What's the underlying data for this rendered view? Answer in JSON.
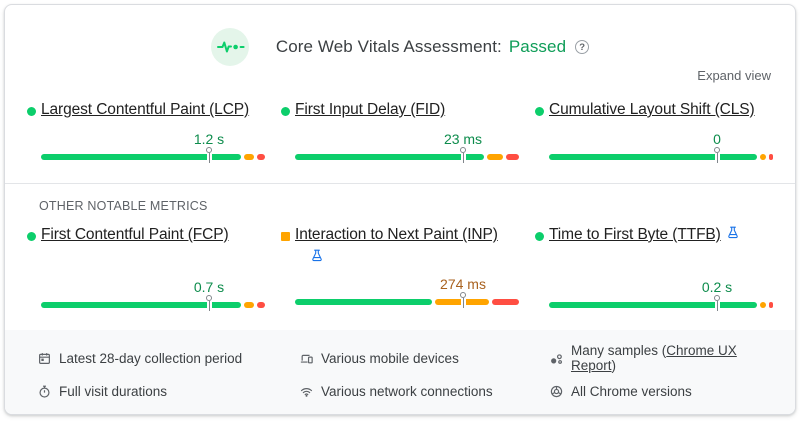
{
  "colors": {
    "green": "#0cce6b",
    "orange": "#ffa400",
    "red": "#ff4e42",
    "value_green": "#0d8c4c",
    "value_amber": "#a9621f",
    "status_green": "#0f9d58"
  },
  "header": {
    "title": "Core Web Vitals Assessment:",
    "status": "Passed",
    "help_glyph": "?"
  },
  "expand_label": "Expand view",
  "other_metrics_label": "OTHER NOTABLE METRICS",
  "metrics": [
    {
      "id": "lcp",
      "title": "Largest Contentful Paint (LCP)",
      "value": "1.2 s",
      "value_color": "value_green",
      "bullet": {
        "shape": "circle",
        "color": "green"
      },
      "marker_pct": 75,
      "segments": [
        {
          "color": "green",
          "pct": 89
        },
        {
          "color": "orange",
          "pct": 4.5
        },
        {
          "color": "red",
          "pct": 3.5
        }
      ]
    },
    {
      "id": "fid",
      "title": "First Input Delay (FID)",
      "value": "23 ms",
      "value_color": "value_green",
      "bullet": {
        "shape": "circle",
        "color": "green"
      },
      "marker_pct": 75,
      "segments": [
        {
          "color": "green",
          "pct": 84
        },
        {
          "color": "orange",
          "pct": 7
        },
        {
          "color": "red",
          "pct": 6
        }
      ]
    },
    {
      "id": "cls",
      "title": "Cumulative Layout Shift (CLS)",
      "value": "0",
      "value_color": "value_green",
      "bullet": {
        "shape": "circle",
        "color": "green"
      },
      "marker_pct": 75,
      "segments": [
        {
          "color": "green",
          "pct": 94
        },
        {
          "color": "orange",
          "pct": 2.5
        },
        {
          "color": "red",
          "pct": 2
        }
      ]
    },
    {
      "id": "fcp",
      "title": "First Contentful Paint (FCP)",
      "value": "0.7 s",
      "value_color": "value_green",
      "bullet": {
        "shape": "circle",
        "color": "green"
      },
      "marker_pct": 75,
      "segments": [
        {
          "color": "green",
          "pct": 89
        },
        {
          "color": "orange",
          "pct": 4.5
        },
        {
          "color": "red",
          "pct": 3.5
        }
      ]
    },
    {
      "id": "inp",
      "title": "Interaction to Next Paint (INP)",
      "value": "274 ms",
      "value_color": "value_amber",
      "bullet": {
        "shape": "square",
        "color": "orange"
      },
      "experimental": true,
      "marker_pct": 75,
      "segments": [
        {
          "color": "green",
          "pct": 61
        },
        {
          "color": "orange",
          "pct": 24
        },
        {
          "color": "red",
          "pct": 12
        }
      ]
    },
    {
      "id": "ttfb",
      "title": "Time to First Byte (TTFB)",
      "value": "0.2 s",
      "value_color": "value_green",
      "bullet": {
        "shape": "circle",
        "color": "green"
      },
      "experimental": true,
      "marker_pct": 75,
      "segments": [
        {
          "color": "green",
          "pct": 93
        },
        {
          "color": "orange",
          "pct": 2.5
        },
        {
          "color": "red",
          "pct": 2
        }
      ]
    }
  ],
  "footer": {
    "items": [
      {
        "icon": "calendar",
        "text": "Latest 28-day collection period"
      },
      {
        "icon": "devices",
        "text": "Various mobile devices"
      },
      {
        "icon": "samples",
        "prefix": "Many samples (",
        "link": "Chrome UX Report",
        "suffix": ")"
      },
      {
        "icon": "stopwatch",
        "text": "Full visit durations"
      },
      {
        "icon": "wifi",
        "text": "Various network connections"
      },
      {
        "icon": "chrome",
        "text": "All Chrome versions"
      }
    ]
  }
}
